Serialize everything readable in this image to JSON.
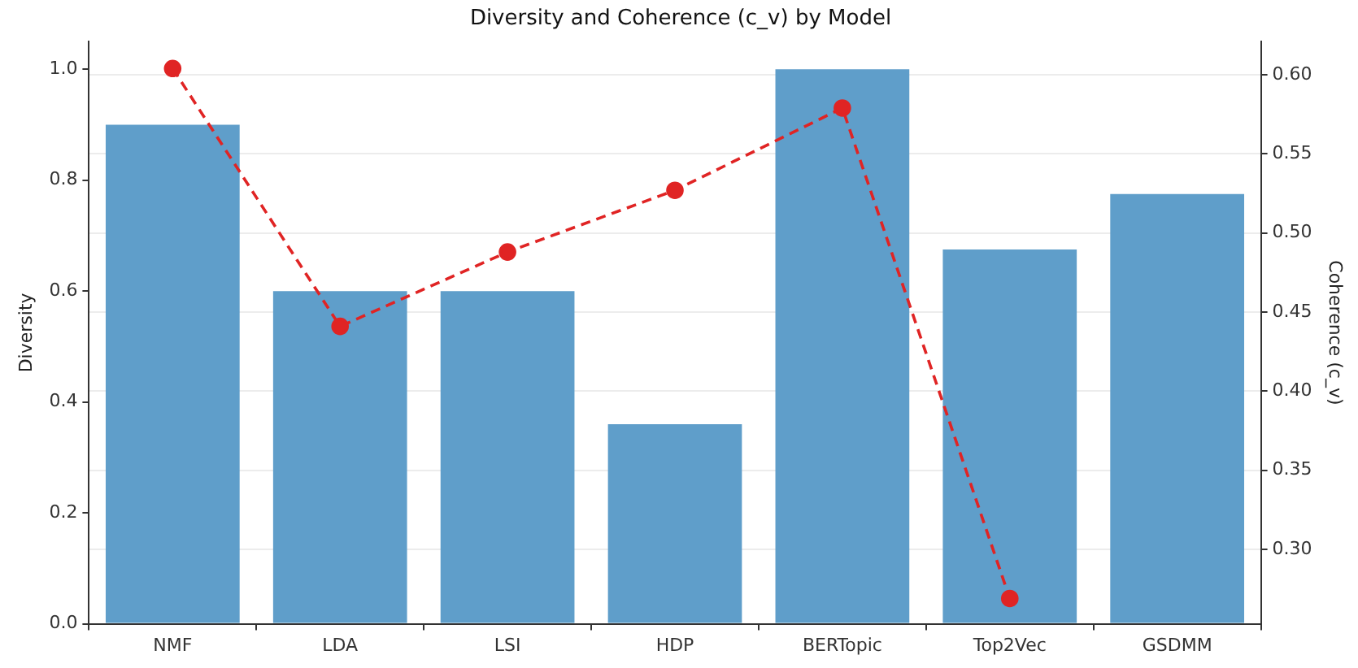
{
  "chart_data": {
    "type": "bar",
    "title": "Diversity and Coherence (c_v) by Model",
    "ylabel": "Diversity",
    "y2label": "Coherence (c_v)",
    "categories": [
      "NMF",
      "LDA",
      "LSI",
      "HDP",
      "BERTopic",
      "Top2Vec",
      "GSDMM"
    ],
    "series": [
      {
        "color": "#5f9eca",
        "values": [
          0.9,
          0.6,
          0.6,
          0.36,
          1.0,
          0.675,
          0.775
        ]
      },
      {
        "type": "line",
        "axis": "y2",
        "color": "#e02424",
        "values": [
          0.604,
          0.441,
          0.488,
          0.527,
          0.579,
          0.269,
          null
        ],
        "marker": "circle",
        "line_style": "dashed"
      }
    ],
    "ylim": [
      0,
      1.05
    ],
    "yticks": [
      {
        "value": 0,
        "label": "0.0"
      },
      0.2,
      0.4,
      0.6,
      0.8,
      {
        "value": 1,
        "label": "1.0"
      }
    ],
    "y2lim": [
      0.253,
      0.621
    ],
    "y2ticks": [
      {
        "value": 0.3,
        "label": "0.30"
      },
      0.35,
      {
        "value": 0.4,
        "label": "0.40"
      },
      0.45,
      {
        "value": 0.5,
        "label": "0.50"
      },
      0.55,
      {
        "value": 0.6,
        "label": "0.60"
      }
    ],
    "grid": "y",
    "legend": false
  }
}
